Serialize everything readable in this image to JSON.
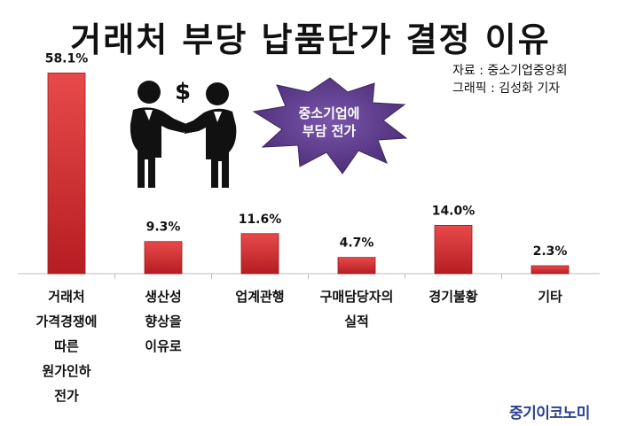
{
  "title": "거래처 부당 납품단가 결정 이유",
  "source_lines": [
    "자료 : 중소기업중앙회",
    "그래픽 : 김성화 기자"
  ],
  "burst_lines": [
    "중소기업에",
    "부담 전가"
  ],
  "logo": "중기이코노미",
  "colors": {
    "bar_top": "#e84a4a",
    "bar_bottom": "#b51d22",
    "burst": "#5e3c8c",
    "logo": "#2a3f8f"
  },
  "icons": [
    "businessmen-handshake-icon",
    "dollar-sign-icon"
  ],
  "chart_data": {
    "type": "bar",
    "unit": "%",
    "ylim": [
      0,
      60
    ],
    "grid": false,
    "categories": [
      [
        "거래처",
        "가격경쟁에",
        "따른",
        "원가인하",
        "전가"
      ],
      [
        "생산성",
        "향상을",
        "이유로"
      ],
      [
        "업계관행"
      ],
      [
        "구매담당자의",
        "실적"
      ],
      [
        "경기불황"
      ],
      [
        "기타"
      ]
    ],
    "values": [
      58.1,
      9.3,
      11.6,
      4.7,
      14.0,
      2.3
    ],
    "value_labels": [
      "58.1%",
      "9.3%",
      "11.6%",
      "4.7%",
      "14.0%",
      "2.3%"
    ]
  }
}
